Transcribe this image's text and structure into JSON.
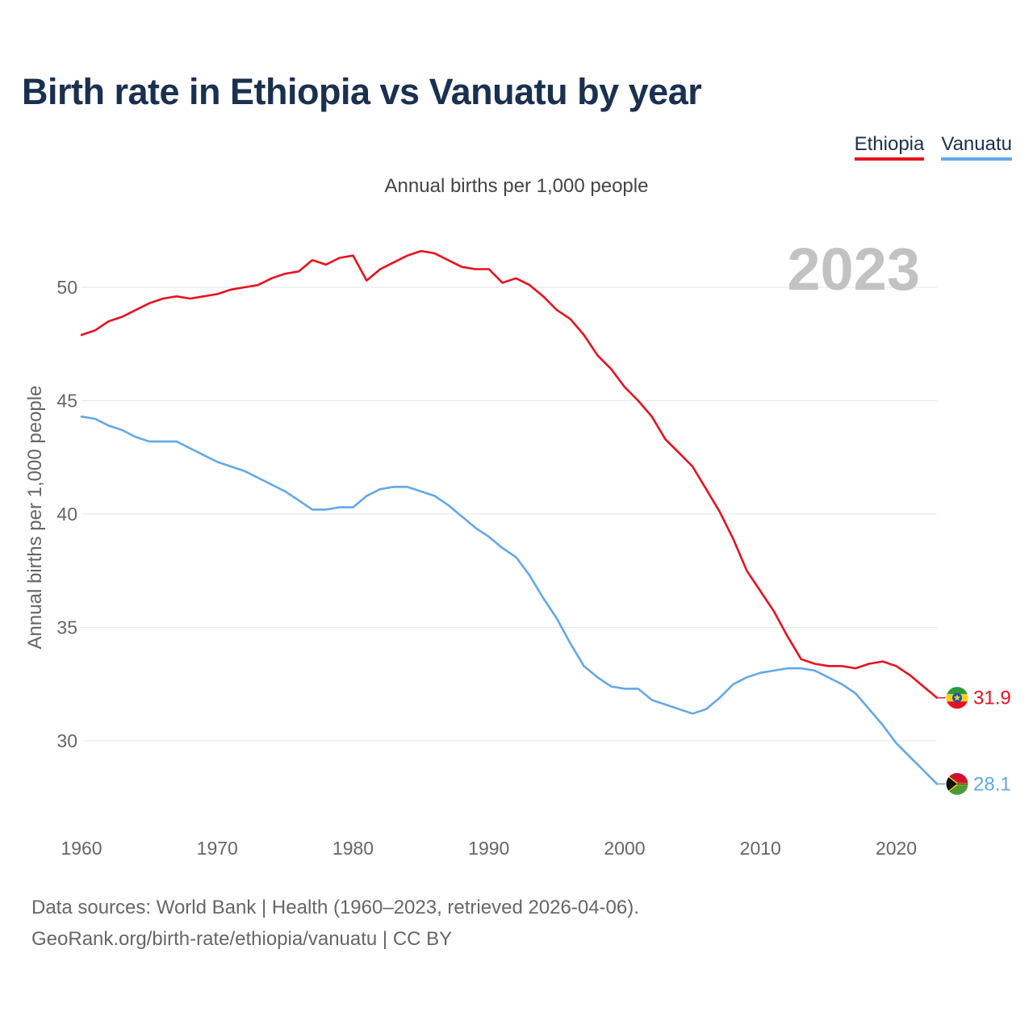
{
  "title": "Birth rate in Ethiopia vs Vanuatu by year",
  "subtitle": "Annual births per 1,000 people",
  "legend": [
    {
      "label": "Ethiopia",
      "color": "#e8121e"
    },
    {
      "label": "Vanuatu",
      "color": "#63a8e8"
    }
  ],
  "year_watermark": "2023",
  "footer": {
    "line1": "Data sources: World Bank | Health (1960–2023, retrieved 2026-04-06).",
    "line2": "GeoRank.org/birth-rate/ethiopia/vanuatu | CC BY"
  },
  "chart_data": {
    "type": "line",
    "title": "Birth rate in Ethiopia vs Vanuatu by year",
    "ylabel": "Annual births per 1,000 people",
    "xlabel": "",
    "xlim": [
      1960,
      2023
    ],
    "ylim": [
      27,
      53
    ],
    "x_ticks": [
      1960,
      1970,
      1980,
      1990,
      2000,
      2010,
      2020
    ],
    "y_ticks": [
      30,
      35,
      40,
      45,
      50
    ],
    "grid": "horizontal",
    "x": [
      1960,
      1961,
      1962,
      1963,
      1964,
      1965,
      1966,
      1967,
      1968,
      1969,
      1970,
      1971,
      1972,
      1973,
      1974,
      1975,
      1976,
      1977,
      1978,
      1979,
      1980,
      1981,
      1982,
      1983,
      1984,
      1985,
      1986,
      1987,
      1988,
      1989,
      1990,
      1991,
      1992,
      1993,
      1994,
      1995,
      1996,
      1997,
      1998,
      1999,
      2000,
      2001,
      2002,
      2003,
      2004,
      2005,
      2006,
      2007,
      2008,
      2009,
      2010,
      2011,
      2012,
      2013,
      2014,
      2015,
      2016,
      2017,
      2018,
      2019,
      2020,
      2021,
      2022,
      2023
    ],
    "series": [
      {
        "name": "Ethiopia",
        "color": "#e8121e",
        "end_label": "31.9",
        "flag": "ethiopia",
        "values": [
          47.9,
          48.1,
          48.5,
          48.7,
          49.0,
          49.3,
          49.5,
          49.6,
          49.5,
          49.6,
          49.7,
          49.9,
          50.0,
          50.1,
          50.4,
          50.6,
          50.7,
          51.2,
          51.0,
          51.3,
          51.4,
          50.3,
          50.8,
          51.1,
          51.4,
          51.6,
          51.5,
          51.2,
          50.9,
          50.8,
          50.8,
          50.2,
          50.4,
          50.1,
          49.6,
          49.0,
          48.6,
          47.9,
          47.0,
          46.4,
          45.6,
          45.0,
          44.3,
          43.3,
          42.7,
          42.1,
          41.1,
          40.1,
          38.9,
          37.5,
          36.6,
          35.7,
          34.6,
          33.6,
          33.4,
          33.3,
          33.3,
          33.2,
          33.4,
          33.5,
          33.3,
          32.9,
          32.4,
          31.9
        ]
      },
      {
        "name": "Vanuatu",
        "color": "#63a8e8",
        "end_label": "28.1",
        "flag": "vanuatu",
        "values": [
          44.3,
          44.2,
          43.9,
          43.7,
          43.4,
          43.2,
          43.2,
          43.2,
          42.9,
          42.6,
          42.3,
          42.1,
          41.9,
          41.6,
          41.3,
          41.0,
          40.6,
          40.2,
          40.2,
          40.3,
          40.3,
          40.8,
          41.1,
          41.2,
          41.2,
          41.0,
          40.8,
          40.4,
          39.9,
          39.4,
          39.0,
          38.5,
          38.1,
          37.3,
          36.3,
          35.4,
          34.3,
          33.3,
          32.8,
          32.4,
          32.3,
          32.3,
          31.8,
          31.6,
          31.4,
          31.2,
          31.4,
          31.9,
          32.5,
          32.8,
          33.0,
          33.1,
          33.2,
          33.2,
          33.1,
          32.8,
          32.5,
          32.1,
          31.4,
          30.7,
          29.9,
          29.3,
          28.7,
          28.1
        ]
      }
    ]
  }
}
